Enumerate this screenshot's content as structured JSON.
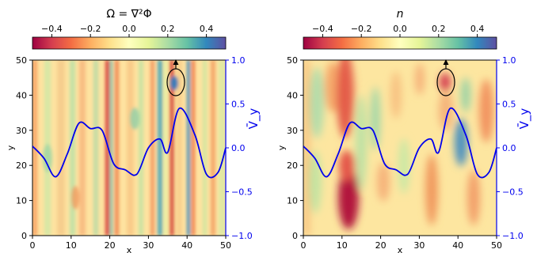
{
  "chart_data": [
    {
      "type": "heatmap",
      "title": "Ω = ∇²Φ",
      "xlabel": "x",
      "ylabel": "y",
      "right_ylabel": "V̄_y",
      "xlim": [
        0,
        50
      ],
      "ylim": [
        0,
        50
      ],
      "x_ticks": [
        0,
        10,
        20,
        30,
        40,
        50
      ],
      "y_ticks": [
        0,
        10,
        20,
        30,
        40,
        50
      ],
      "right_ylim": [
        -1.0,
        1.0
      ],
      "right_ticks": [
        "−1.0",
        "−0.5",
        "0.0",
        "0.5",
        "1.0"
      ],
      "colorbar": {
        "colormap": "Spectral",
        "range": [
          -0.5,
          0.5
        ],
        "ticks": [
          "−0.4",
          "−0.2",
          "0.0",
          "0.2",
          "0.4"
        ],
        "placement": "top"
      },
      "profile_color": "#0000ee",
      "profile": {
        "x": [
          0,
          3,
          6,
          9,
          12,
          15,
          18,
          21,
          24,
          27,
          30,
          33,
          35,
          38,
          42,
          45,
          48,
          50
        ],
        "values": [
          0.02,
          -0.12,
          -0.33,
          -0.07,
          0.28,
          0.22,
          0.2,
          -0.18,
          -0.25,
          -0.3,
          0.0,
          0.1,
          -0.05,
          0.45,
          0.15,
          -0.3,
          -0.28,
          0.0
        ]
      },
      "annotation": {
        "shape": "ellipse with arrow",
        "x": 37,
        "y": 44
      }
    },
    {
      "type": "heatmap",
      "title": "n",
      "xlabel": "x",
      "ylabel": "y",
      "right_ylabel": "V̄_y",
      "xlim": [
        0,
        50
      ],
      "ylim": [
        0,
        50
      ],
      "x_ticks": [
        0,
        10,
        20,
        30,
        40,
        50
      ],
      "y_ticks": [
        0,
        10,
        20,
        30,
        40,
        50
      ],
      "right_ylim": [
        -1.0,
        1.0
      ],
      "right_ticks": [
        "−1.0",
        "−0.5",
        "0.0",
        "0.5",
        "1.0"
      ],
      "colorbar": {
        "colormap": "Spectral",
        "range": [
          -0.5,
          0.5
        ],
        "ticks": [
          "−0.4",
          "−0.2",
          "0.0",
          "0.2",
          "0.4"
        ],
        "placement": "top"
      },
      "profile_color": "#0000ee",
      "profile": {
        "x": [
          0,
          3,
          6,
          9,
          12,
          15,
          18,
          21,
          24,
          27,
          30,
          33,
          35,
          38,
          42,
          45,
          48,
          50
        ],
        "values": [
          0.02,
          -0.12,
          -0.33,
          -0.07,
          0.28,
          0.22,
          0.2,
          -0.18,
          -0.25,
          -0.3,
          0.0,
          0.1,
          -0.05,
          0.45,
          0.15,
          -0.3,
          -0.28,
          0.0
        ]
      },
      "annotation": {
        "shape": "ellipse with arrow",
        "x": 37,
        "y": 44
      }
    }
  ]
}
